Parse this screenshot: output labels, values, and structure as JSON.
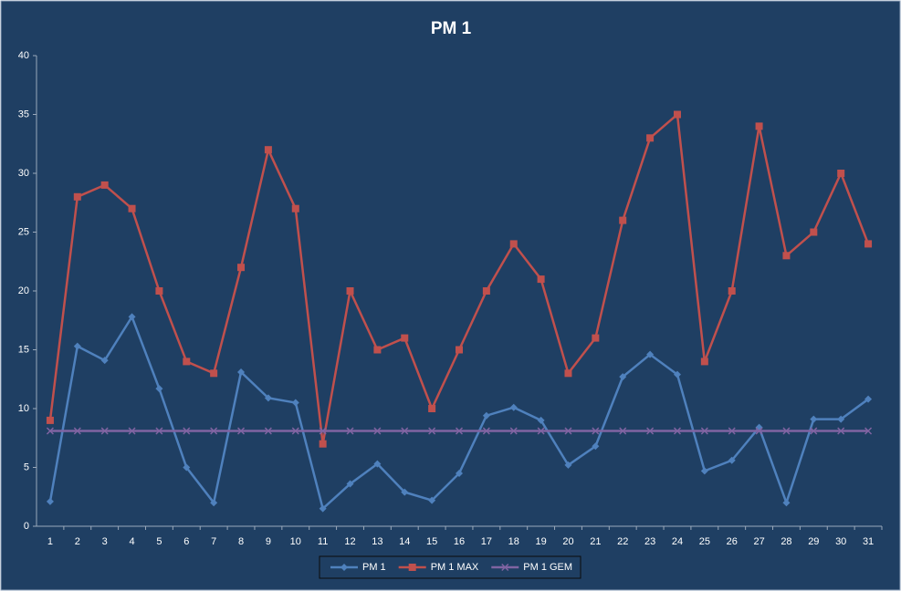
{
  "chart_data": {
    "type": "line",
    "title": "PM 1",
    "categories": [
      "1",
      "2",
      "3",
      "4",
      "5",
      "6",
      "7",
      "8",
      "9",
      "10",
      "11",
      "12",
      "13",
      "14",
      "15",
      "16",
      "17",
      "18",
      "19",
      "20",
      "21",
      "22",
      "23",
      "24",
      "25",
      "26",
      "27",
      "28",
      "29",
      "30",
      "31"
    ],
    "series": [
      {
        "name": "PM 1",
        "color": "#4f81bd",
        "marker": "diamond",
        "values": [
          2.1,
          15.3,
          14.1,
          17.8,
          11.7,
          5.0,
          2.0,
          13.1,
          10.9,
          10.5,
          1.5,
          3.6,
          5.3,
          2.9,
          2.2,
          4.5,
          9.4,
          10.1,
          9.0,
          5.2,
          6.8,
          12.7,
          14.6,
          12.9,
          4.7,
          5.6,
          8.4,
          2.0,
          9.1,
          9.1,
          10.8
        ]
      },
      {
        "name": "PM 1 MAX",
        "color": "#c0504d",
        "marker": "square",
        "values": [
          9,
          28,
          29,
          27,
          20,
          14,
          13,
          22,
          32,
          27,
          7,
          20,
          15,
          16,
          10,
          15,
          20,
          24,
          21,
          13,
          16,
          26,
          33,
          35,
          14,
          20,
          34,
          23,
          25,
          30,
          24
        ]
      },
      {
        "name": "PM 1 GEM",
        "color": "#8064a2",
        "marker": "x",
        "values": [
          8.1,
          8.1,
          8.1,
          8.1,
          8.1,
          8.1,
          8.1,
          8.1,
          8.1,
          8.1,
          8.1,
          8.1,
          8.1,
          8.1,
          8.1,
          8.1,
          8.1,
          8.1,
          8.1,
          8.1,
          8.1,
          8.1,
          8.1,
          8.1,
          8.1,
          8.1,
          8.1,
          8.1,
          8.1,
          8.1,
          8.1
        ]
      }
    ],
    "ylim": [
      0,
      40
    ],
    "yticks": [
      0,
      5,
      10,
      15,
      20,
      25,
      30,
      35,
      40
    ],
    "grid": false,
    "legend": "bottom"
  }
}
